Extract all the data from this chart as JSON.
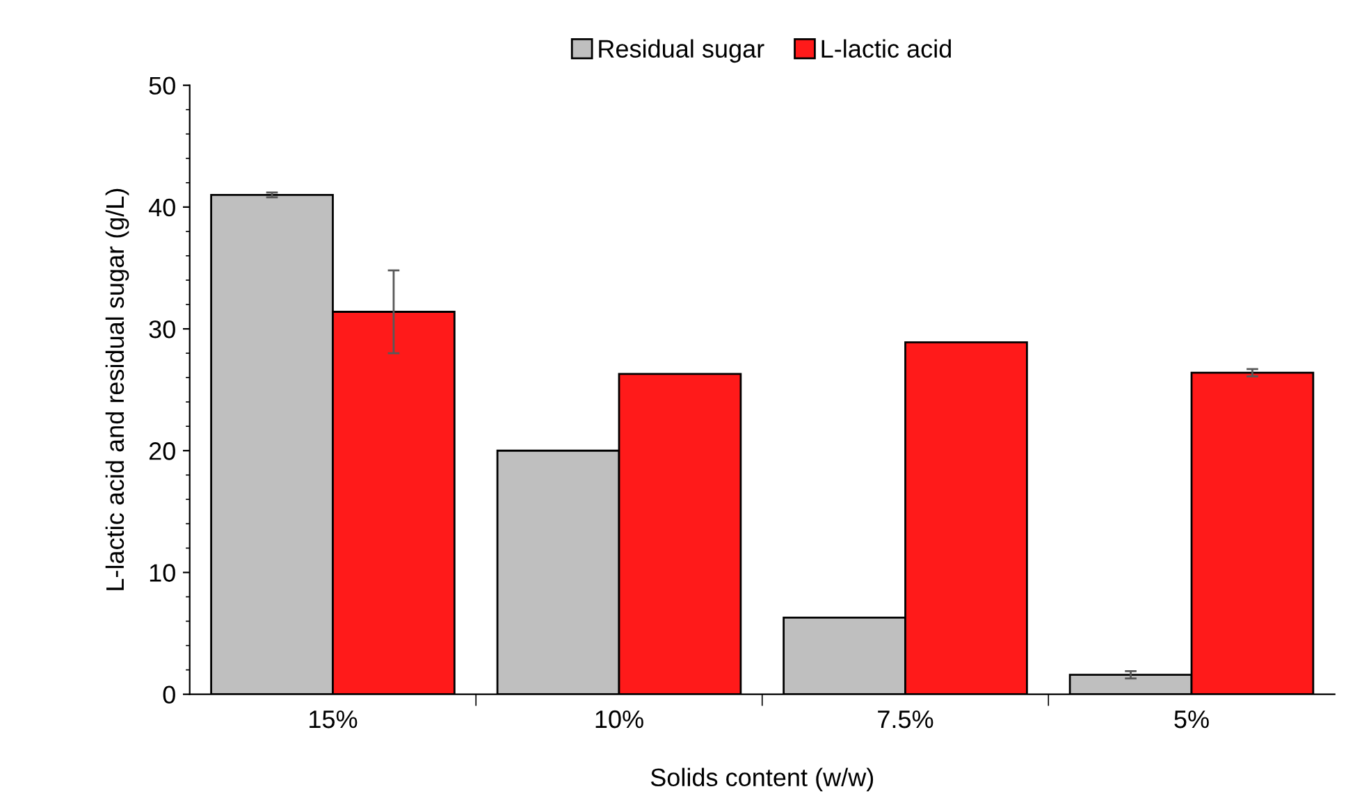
{
  "chart_data": {
    "type": "bar",
    "xlabel": "Solids content (w/w)",
    "ylabel": "L-lactic acid and residual sugar (g/L)",
    "categories": [
      "15%",
      "10%",
      "7.5%",
      "5%"
    ],
    "series": [
      {
        "name": "Residual sugar",
        "color": "#bfbfbf",
        "values": [
          41.0,
          20.0,
          6.3,
          1.6
        ],
        "errors": [
          0.2,
          null,
          null,
          0.3
        ]
      },
      {
        "name": "L-lactic acid",
        "color": "#ff1a1a",
        "values": [
          31.4,
          26.3,
          28.9,
          26.4
        ],
        "errors": [
          3.4,
          null,
          null,
          0.3
        ]
      }
    ],
    "ylim": [
      0,
      50
    ],
    "yticks": [
      0,
      10,
      20,
      30,
      40,
      50
    ],
    "grid": false,
    "legend": "top"
  }
}
